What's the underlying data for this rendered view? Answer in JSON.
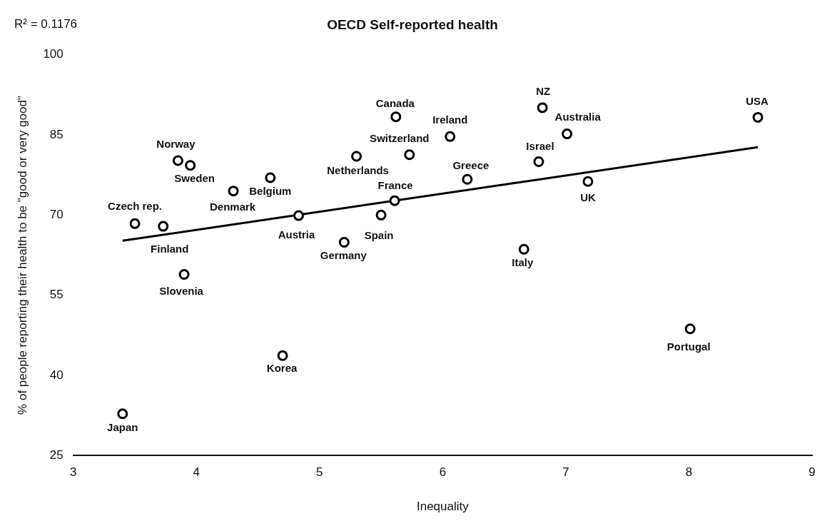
{
  "chart_data": {
    "type": "scatter",
    "title": "OECD Self-reported health",
    "xlabel": "Inequality",
    "ylabel": "% of people reporting their health to be \"good or very good\"",
    "xlim": [
      3,
      9
    ],
    "xticks": [
      3,
      4,
      5,
      6,
      7,
      8,
      9
    ],
    "ylim": [
      25,
      100
    ],
    "yticks": [
      25,
      40,
      55,
      70,
      85,
      100
    ],
    "grid": false,
    "legend": false,
    "marker": "circle",
    "series": [
      {
        "color": "#000000",
        "x": [
          3.4,
          3.5,
          3.73,
          3.9,
          3.85,
          3.95,
          4.3,
          4.6,
          4.83,
          4.7,
          5.2,
          5.3,
          5.5,
          5.61,
          5.62,
          5.73,
          6.06,
          6.2,
          6.66,
          6.78,
          6.81,
          7.01,
          7.18,
          8.01,
          8.56
        ],
        "values": [
          32.8,
          68.4,
          67.9,
          58.9,
          80.2,
          79.3,
          74.5,
          77.0,
          69.9,
          43.7,
          64.9,
          81.0,
          70.0,
          72.7,
          88.4,
          81.3,
          84.7,
          76.7,
          63.6,
          80.0,
          90.1,
          85.2,
          76.3,
          48.7,
          88.3
        ]
      },
      {
        "type": "line",
        "marker": "none",
        "color": "#000000",
        "x": [
          3.4,
          8.56
        ],
        "values": [
          65.2,
          82.7
        ]
      }
    ],
    "annotations": [
      "R² = 0.1176",
      {
        "text": "Japan",
        "x": 3.4,
        "y": 32.8
      },
      {
        "text": "Czech rep.",
        "x": 3.5,
        "y": 68.4
      },
      {
        "text": "Finland",
        "x": 3.73,
        "y": 67.9
      },
      {
        "text": "Slovenia",
        "x": 3.9,
        "y": 58.9
      },
      {
        "text": "Norway",
        "x": 3.85,
        "y": 80.2
      },
      {
        "text": "Sweden",
        "x": 3.95,
        "y": 79.3
      },
      {
        "text": "Denmark",
        "x": 4.3,
        "y": 74.5
      },
      {
        "text": "Belgium",
        "x": 4.6,
        "y": 77.0
      },
      {
        "text": "Austria",
        "x": 4.83,
        "y": 69.9
      },
      {
        "text": "Korea",
        "x": 4.7,
        "y": 43.7
      },
      {
        "text": "Germany",
        "x": 5.2,
        "y": 64.9
      },
      {
        "text": "Netherlands",
        "x": 5.3,
        "y": 81.0
      },
      {
        "text": "Spain",
        "x": 5.5,
        "y": 70.0
      },
      {
        "text": "France",
        "x": 5.61,
        "y": 72.7
      },
      {
        "text": "Canada",
        "x": 5.62,
        "y": 88.4
      },
      {
        "text": "Switzerland",
        "x": 5.73,
        "y": 81.3
      },
      {
        "text": "Ireland",
        "x": 6.06,
        "y": 84.7
      },
      {
        "text": "Greece",
        "x": 6.2,
        "y": 76.7
      },
      {
        "text": "Italy",
        "x": 6.66,
        "y": 63.6
      },
      {
        "text": "Israel",
        "x": 6.78,
        "y": 80.0
      },
      {
        "text": "NZ",
        "x": 6.81,
        "y": 90.1
      },
      {
        "text": "Australia",
        "x": 7.01,
        "y": 85.2
      },
      {
        "text": "UK",
        "x": 7.18,
        "y": 76.3
      },
      {
        "text": "Portugal",
        "x": 8.01,
        "y": 48.7
      },
      {
        "text": "USA",
        "x": 8.56,
        "y": 88.3
      }
    ]
  }
}
